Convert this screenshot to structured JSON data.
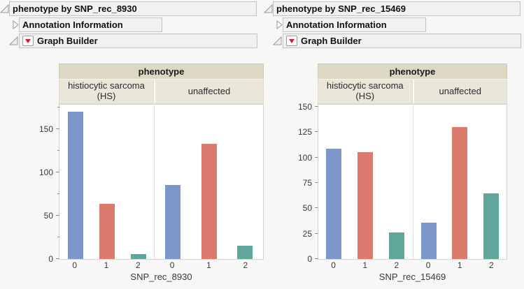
{
  "panels": [
    {
      "title": "phenotype by SNP_rec_8930",
      "annotation_label": "Annotation Information",
      "graph_builder_label": "Graph Builder"
    },
    {
      "title": "phenotype by SNP_rec_15469",
      "annotation_label": "Annotation Information",
      "graph_builder_label": "Graph Builder"
    }
  ],
  "chart_data": [
    {
      "type": "bar",
      "title": "phenotype",
      "facets": [
        "histiocytic sarcoma (HS)",
        "unaffected"
      ],
      "categories": [
        "0",
        "1",
        "2"
      ],
      "series": [
        {
          "name": "histiocytic sarcoma (HS)",
          "values": [
            170,
            64,
            6
          ]
        },
        {
          "name": "unaffected",
          "values": [
            85,
            133,
            15
          ]
        }
      ],
      "xlabel": "SNP_rec_8930",
      "ylabel": "",
      "ylim": [
        0,
        178
      ],
      "yticks": [
        0,
        50,
        100,
        150
      ],
      "yticks_minor": [
        25,
        75,
        125,
        175
      ],
      "bar_colors": [
        "#7e97ca",
        "#da7b6d",
        "#60a69b"
      ],
      "legend": "none",
      "grid": false
    },
    {
      "type": "bar",
      "title": "phenotype",
      "facets": [
        "histiocytic sarcoma (HS)",
        "unaffected"
      ],
      "categories": [
        "0",
        "1",
        "2"
      ],
      "series": [
        {
          "name": "histiocytic sarcoma (HS)",
          "values": [
            109,
            105,
            26
          ]
        },
        {
          "name": "unaffected",
          "values": [
            36,
            130,
            65
          ]
        }
      ],
      "xlabel": "SNP_rec_15469",
      "ylabel": "",
      "ylim": [
        0,
        152
      ],
      "yticks": [
        0,
        25,
        50,
        75,
        100,
        125,
        150
      ],
      "yticks_minor": [],
      "bar_colors": [
        "#7e97ca",
        "#da7b6d",
        "#60a69b"
      ],
      "legend": "none",
      "grid": false
    }
  ],
  "colors": {
    "bar_blue": "#7e97ca",
    "bar_salmon": "#da7b6d",
    "bar_teal": "#60a69b",
    "header_band": "#ddd8c4",
    "facet_band": "#eae6d9",
    "outline_bar": "#f1f1f1",
    "red_triangle": "#cf2030"
  }
}
